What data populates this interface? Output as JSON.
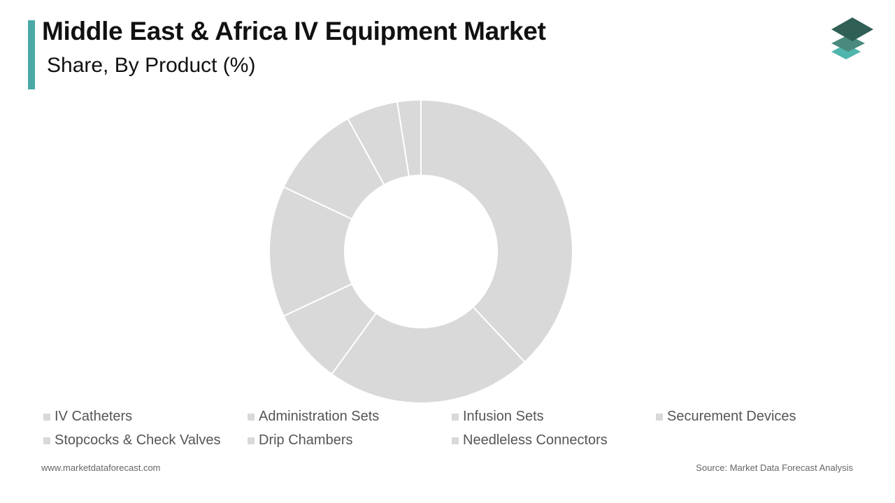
{
  "header": {
    "title": "Middle East & Africa IV Equipment Market",
    "subtitle": "Share, By Product (%)"
  },
  "footer": {
    "website": "www.marketdataforecast.com",
    "source": "Source: Market Data Forecast Analysis"
  },
  "colors": {
    "accent": "#4aa9a6",
    "slice": "#d9d9d9",
    "slice_border": "#ffffff",
    "logo_top": "#2f5f55",
    "logo_mid": "#4a8a7e",
    "logo_bottom": "#4fb5ad"
  },
  "logo": {
    "icon": "stacked-layers-icon"
  },
  "chart_data": {
    "type": "donut",
    "title": "Middle East & Africa IV Equipment Market",
    "subtitle": "Share, By Product (%)",
    "categories": [
      "IV Catheters",
      "Administration Sets",
      "Infusion Sets",
      "Securement Devices",
      "Stopcocks & Check Valves",
      "Drip Chambers",
      "Needleless Connectors"
    ],
    "values": [
      38,
      22,
      8,
      14,
      10,
      5.5,
      2.5
    ],
    "legend": "bottom"
  }
}
